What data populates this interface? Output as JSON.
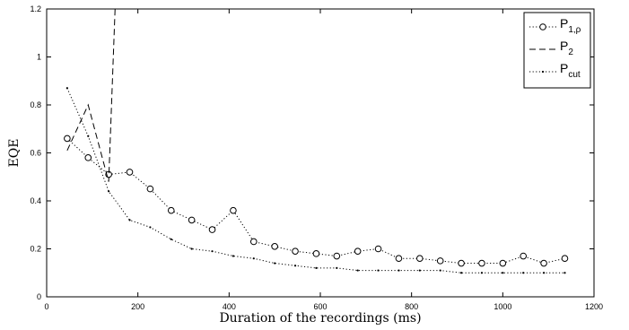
{
  "chart_data": {
    "type": "line",
    "title": "",
    "xlabel": "Duration of the recordings (ms)",
    "ylabel": "EQE",
    "xlim": [
      0,
      1200
    ],
    "ylim": [
      0,
      1.2
    ],
    "x_ticks": [
      0,
      200,
      400,
      600,
      800,
      1000,
      1200
    ],
    "y_ticks": [
      0,
      0.2,
      0.4,
      0.6,
      0.8,
      1,
      1.2
    ],
    "x_tick_labels": [
      "0",
      "200",
      "400",
      "600",
      "800",
      "1000",
      "1200"
    ],
    "y_tick_labels": [
      "0",
      "0.2",
      "0.4",
      "0.6",
      "0.8",
      "1",
      "1.2"
    ],
    "grid": false,
    "legend_position": "top-right",
    "series": [
      {
        "name_main": "P",
        "name_sub": "1,ρ",
        "line_style": "dotted",
        "marker": "circle",
        "color": "#000000",
        "x": [
          45,
          91,
          136,
          182,
          227,
          273,
          318,
          363,
          409,
          454,
          500,
          545,
          591,
          636,
          682,
          727,
          772,
          818,
          863,
          909,
          954,
          1000,
          1045,
          1090,
          1136
        ],
        "y": [
          0.66,
          0.58,
          0.51,
          0.52,
          0.45,
          0.36,
          0.32,
          0.28,
          0.36,
          0.23,
          0.21,
          0.19,
          0.18,
          0.17,
          0.19,
          0.2,
          0.16,
          0.16,
          0.15,
          0.14,
          0.14,
          0.14,
          0.17,
          0.14,
          0.16
        ]
      },
      {
        "name_main": "P",
        "name_sub": "2",
        "line_style": "dashed",
        "marker": "none",
        "color": "#000000",
        "x": [
          45,
          91,
          136,
          150
        ],
        "y": [
          0.61,
          0.8,
          0.48,
          1.2
        ]
      },
      {
        "name_main": "P",
        "name_sub": "cut",
        "line_style": "dotted",
        "marker": "dot",
        "color": "#000000",
        "x": [
          45,
          91,
          136,
          182,
          227,
          273,
          318,
          363,
          409,
          454,
          500,
          545,
          591,
          636,
          682,
          727,
          772,
          818,
          863,
          909,
          954,
          1000,
          1045,
          1090,
          1136
        ],
        "y": [
          0.87,
          0.67,
          0.44,
          0.32,
          0.29,
          0.24,
          0.2,
          0.19,
          0.17,
          0.16,
          0.14,
          0.13,
          0.12,
          0.12,
          0.11,
          0.11,
          0.11,
          0.11,
          0.11,
          0.1,
          0.1,
          0.1,
          0.1,
          0.1,
          0.1
        ]
      }
    ]
  }
}
